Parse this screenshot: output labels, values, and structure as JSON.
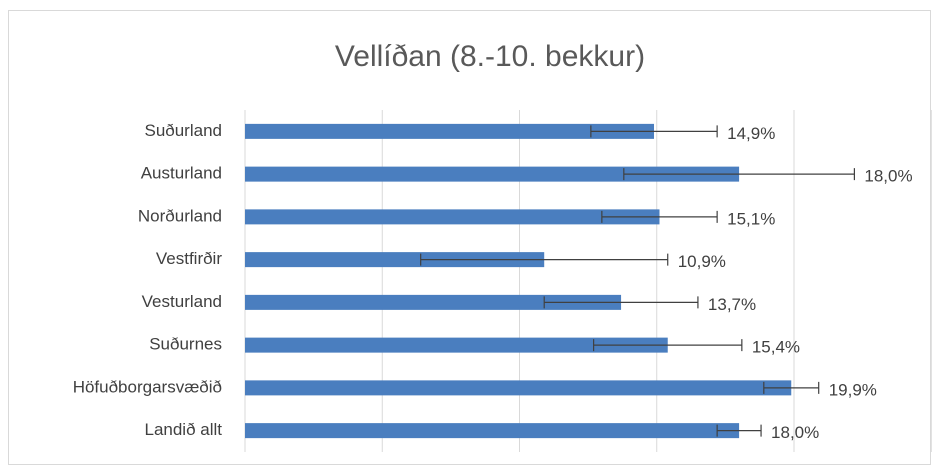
{
  "chart_data": {
    "type": "bar",
    "orientation": "horizontal",
    "title": "Vellíðan (8.-10. bekkur)",
    "categories": [
      "Suðurland",
      "Austurland",
      "Norðurland",
      "Vestfirðir",
      "Vesturland",
      "Suðurnes",
      "Höfuðborgarsvæðið",
      "Landið allt"
    ],
    "values": [
      14.9,
      18.0,
      15.1,
      10.9,
      13.7,
      15.4,
      19.9,
      18.0
    ],
    "value_labels": [
      "14,9%",
      "18,0%",
      "15,1%",
      "10,9%",
      "13,7%",
      "15,4%",
      "19,9%",
      "18,0%"
    ],
    "errors": [
      2.3,
      4.2,
      2.1,
      4.5,
      2.8,
      2.7,
      1.0,
      0.8
    ],
    "color": "#4a7ebf",
    "xlim": [
      0,
      25
    ],
    "xticks": [
      0,
      5,
      10,
      15,
      20,
      25
    ],
    "grid": true
  }
}
